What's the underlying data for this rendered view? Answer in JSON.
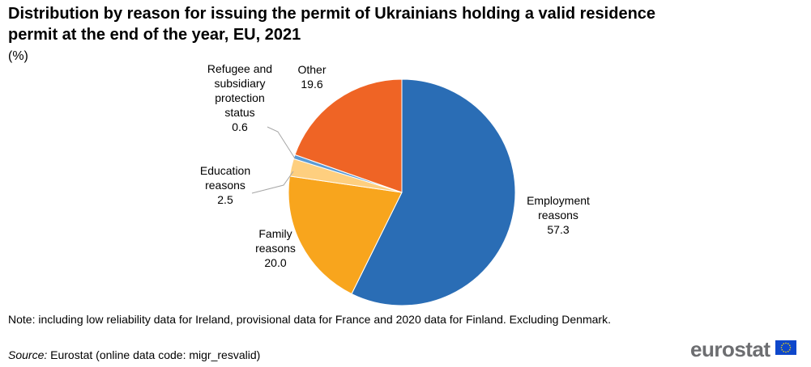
{
  "title": "Distribution by reason for issuing the permit of Ukrainians holding a valid residence permit at the end of the year, EU, 2021",
  "unit": "(%)",
  "note": "Note: including low reliability data for Ireland, provisional data for France and 2020 data for Finland. Excluding Denmark.",
  "source": {
    "label": "Source:",
    "text": " Eurostat (online data code: migr_resvalid)"
  },
  "brand": {
    "text": "eurostat",
    "flag_icon": "eu-flag-icon"
  },
  "chart_data": {
    "type": "pie",
    "slices": [
      {
        "name": "Employment reasons",
        "label_lines": [
          "Employment",
          "reasons"
        ],
        "value": 57.3,
        "display": "57.3",
        "color": "#2a6db5"
      },
      {
        "name": "Family reasons",
        "label_lines": [
          "Family",
          "reasons"
        ],
        "value": 20.0,
        "display": "20.0",
        "color": "#f8a51d"
      },
      {
        "name": "Education reasons",
        "label_lines": [
          "Education",
          "reasons"
        ],
        "value": 2.5,
        "display": "2.5",
        "color": "#fecf7f"
      },
      {
        "name": "Refugee and subsidiary protection status",
        "label_lines": [
          "Refugee and",
          "subsidiary",
          "protection",
          "status"
        ],
        "value": 0.6,
        "display": "0.6",
        "color": "#5b9bd5"
      },
      {
        "name": "Other",
        "label_lines": [
          "Other"
        ],
        "value": 19.6,
        "display": "19.6",
        "color": "#ef6425"
      }
    ],
    "start": "12 o'clock",
    "direction": "clockwise"
  }
}
